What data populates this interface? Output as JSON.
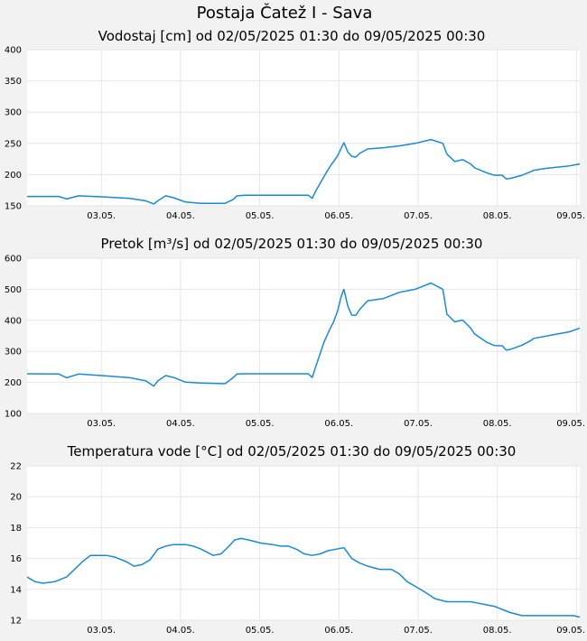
{
  "page": {
    "title": "Postaja Čatež I - Sava"
  },
  "chart_data": [
    {
      "type": "line",
      "title": "Vodostaj [cm] od 02/05/2025 01:30 do 09/05/2025 00:30",
      "ylim": [
        150,
        400
      ],
      "yticks": [
        150,
        200,
        250,
        300,
        350,
        400
      ],
      "xlim": [
        0,
        6.979
      ],
      "xticks": [
        {
          "x": 0.9375,
          "label": "03.05."
        },
        {
          "x": 1.9375,
          "label": "04.05."
        },
        {
          "x": 2.9375,
          "label": "05.05."
        },
        {
          "x": 3.9375,
          "label": "06.05."
        },
        {
          "x": 4.9375,
          "label": "07.05."
        },
        {
          "x": 5.9375,
          "label": "08.05."
        },
        {
          "x": 6.9375,
          "label": "09.05."
        }
      ],
      "grid": true,
      "series": [
        {
          "color": "#1a8ad4",
          "x": [
            0,
            0.4,
            0.5,
            0.65,
            1.0,
            1.3,
            1.5,
            1.6,
            1.65,
            1.75,
            1.85,
            2.0,
            2.2,
            2.5,
            2.6,
            2.65,
            2.75,
            3.0,
            3.3,
            3.55,
            3.6,
            3.65,
            3.75,
            3.82,
            3.87,
            3.92,
            3.97,
            4.0,
            4.05,
            4.1,
            4.15,
            4.2,
            4.3,
            4.5,
            4.7,
            4.9,
            5.1,
            5.25,
            5.3,
            5.4,
            5.5,
            5.6,
            5.65,
            5.8,
            5.9,
            6.0,
            6.05,
            6.1,
            6.25,
            6.35,
            6.4,
            6.55,
            6.7,
            6.85,
            6.979
          ],
          "y": [
            165,
            165,
            161,
            166,
            164,
            162,
            158,
            153,
            158,
            166,
            163,
            156,
            154,
            154,
            160,
            166,
            167,
            167,
            167,
            167,
            162,
            175,
            197,
            212,
            221,
            230,
            243,
            251,
            236,
            229,
            228,
            234,
            241,
            243,
            246,
            250,
            256,
            250,
            233,
            221,
            224,
            217,
            211,
            203,
            199,
            199,
            193,
            194,
            199,
            204,
            207,
            210,
            212,
            214,
            217
          ]
        }
      ]
    },
    {
      "type": "line",
      "title": "Pretok [m³/s] od 02/05/2025 01:30 do 09/05/2025 00:30",
      "ylim": [
        100,
        600
      ],
      "yticks": [
        100,
        200,
        300,
        400,
        500,
        600
      ],
      "xlim": [
        0,
        6.979
      ],
      "xticks": [
        {
          "x": 0.9375,
          "label": "03.05."
        },
        {
          "x": 1.9375,
          "label": "04.05."
        },
        {
          "x": 2.9375,
          "label": "05.05."
        },
        {
          "x": 3.9375,
          "label": "06.05."
        },
        {
          "x": 4.9375,
          "label": "07.05."
        },
        {
          "x": 5.9375,
          "label": "08.05."
        },
        {
          "x": 6.9375,
          "label": "09.05."
        }
      ],
      "grid": true,
      "series": [
        {
          "color": "#1a8ad4",
          "x": [
            0,
            0.4,
            0.5,
            0.65,
            1.0,
            1.3,
            1.5,
            1.6,
            1.65,
            1.75,
            1.85,
            2.0,
            2.2,
            2.5,
            2.6,
            2.65,
            2.75,
            3.0,
            3.3,
            3.55,
            3.6,
            3.65,
            3.75,
            3.82,
            3.87,
            3.92,
            3.97,
            4.0,
            4.05,
            4.1,
            4.15,
            4.2,
            4.3,
            4.5,
            4.7,
            4.9,
            5.1,
            5.25,
            5.3,
            5.4,
            5.5,
            5.6,
            5.65,
            5.8,
            5.9,
            6.0,
            6.05,
            6.1,
            6.25,
            6.35,
            6.4,
            6.55,
            6.7,
            6.85,
            6.979
          ],
          "y": [
            228,
            227,
            215,
            227,
            221,
            215,
            205,
            188,
            205,
            222,
            216,
            201,
            198,
            196,
            215,
            227,
            228,
            228,
            228,
            228,
            216,
            255,
            330,
            370,
            395,
            430,
            480,
            500,
            445,
            417,
            416,
            435,
            463,
            470,
            490,
            500,
            520,
            500,
            420,
            395,
            401,
            375,
            356,
            330,
            319,
            318,
            304,
            306,
            320,
            333,
            342,
            349,
            356,
            363,
            375
          ]
        }
      ]
    },
    {
      "type": "line",
      "title": "Temperatura vode [°C] od 02/05/2025 01:30 do 09/05/2025 00:30",
      "ylim": [
        12,
        22
      ],
      "yticks": [
        12,
        14,
        16,
        18,
        20,
        22
      ],
      "xlim": [
        0,
        6.979
      ],
      "xticks": [
        {
          "x": 0.9375,
          "label": "03.05."
        },
        {
          "x": 1.9375,
          "label": "04.05."
        },
        {
          "x": 2.9375,
          "label": "05.05."
        },
        {
          "x": 3.9375,
          "label": "06.05."
        },
        {
          "x": 4.9375,
          "label": "07.05."
        },
        {
          "x": 5.9375,
          "label": "08.05."
        },
        {
          "x": 6.9375,
          "label": "09.05."
        }
      ],
      "grid": true,
      "series": [
        {
          "color": "#1a8ad4",
          "x": [
            0,
            0.1,
            0.2,
            0.35,
            0.5,
            0.6,
            0.7,
            0.8,
            0.9,
            1.0,
            1.1,
            1.25,
            1.35,
            1.45,
            1.55,
            1.65,
            1.75,
            1.85,
            2.0,
            2.1,
            2.2,
            2.35,
            2.45,
            2.55,
            2.62,
            2.7,
            2.8,
            2.95,
            3.1,
            3.2,
            3.3,
            3.4,
            3.5,
            3.6,
            3.7,
            3.8,
            3.9,
            4.0,
            4.1,
            4.2,
            4.3,
            4.45,
            4.6,
            4.7,
            4.8,
            4.9,
            5.0,
            5.15,
            5.3,
            5.5,
            5.6,
            5.7,
            5.8,
            5.9,
            6.0,
            6.1,
            6.25,
            6.5,
            6.65,
            6.8,
            6.9,
            6.979
          ],
          "y": [
            14.8,
            14.5,
            14.4,
            14.5,
            14.8,
            15.3,
            15.8,
            16.2,
            16.2,
            16.2,
            16.1,
            15.8,
            15.5,
            15.6,
            15.9,
            16.6,
            16.8,
            16.9,
            16.9,
            16.8,
            16.6,
            16.2,
            16.3,
            16.8,
            17.2,
            17.3,
            17.2,
            17.0,
            16.9,
            16.8,
            16.8,
            16.6,
            16.3,
            16.2,
            16.3,
            16.5,
            16.6,
            16.7,
            16.0,
            15.7,
            15.5,
            15.3,
            15.3,
            15.0,
            14.5,
            14.2,
            13.9,
            13.4,
            13.2,
            13.2,
            13.2,
            13.1,
            13.0,
            12.9,
            12.7,
            12.5,
            12.3,
            12.3,
            12.3,
            12.3,
            12.3,
            12.2
          ]
        }
      ]
    }
  ]
}
